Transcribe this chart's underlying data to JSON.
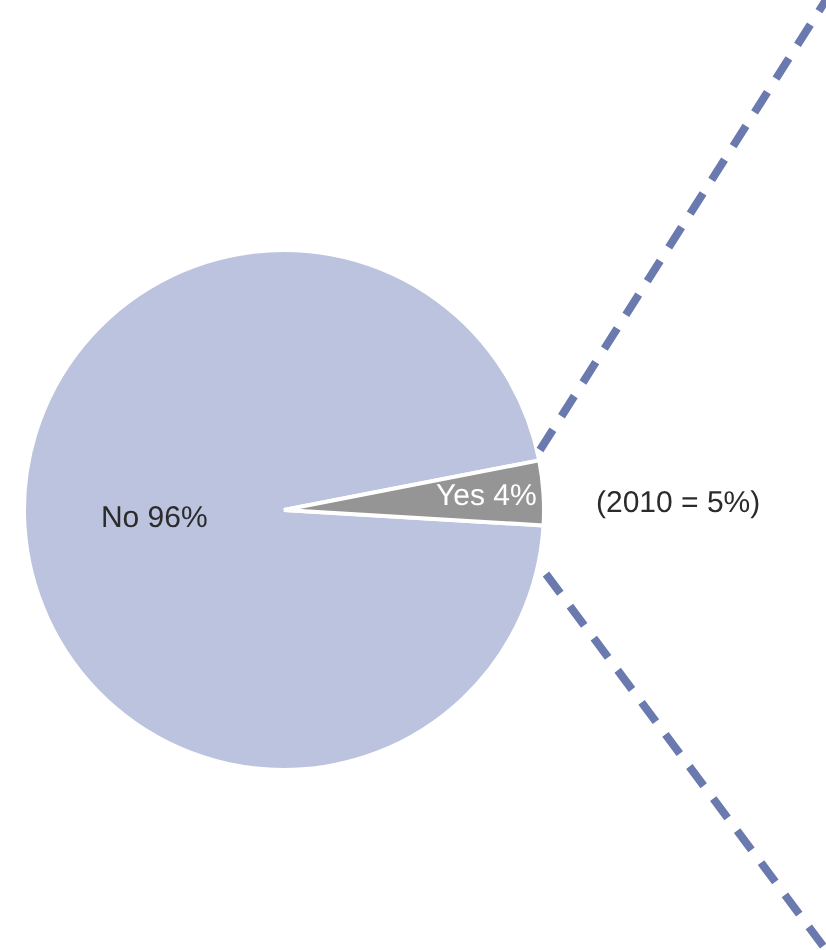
{
  "chart_data": {
    "type": "pie",
    "categories": [
      "No",
      "Yes"
    ],
    "values": [
      96,
      4
    ],
    "value_labels": [
      "96%",
      "4%"
    ],
    "colors": [
      "#bcc3de",
      "#959595"
    ],
    "annotations": [
      "(2010 = 5%)"
    ],
    "legend": false
  }
}
